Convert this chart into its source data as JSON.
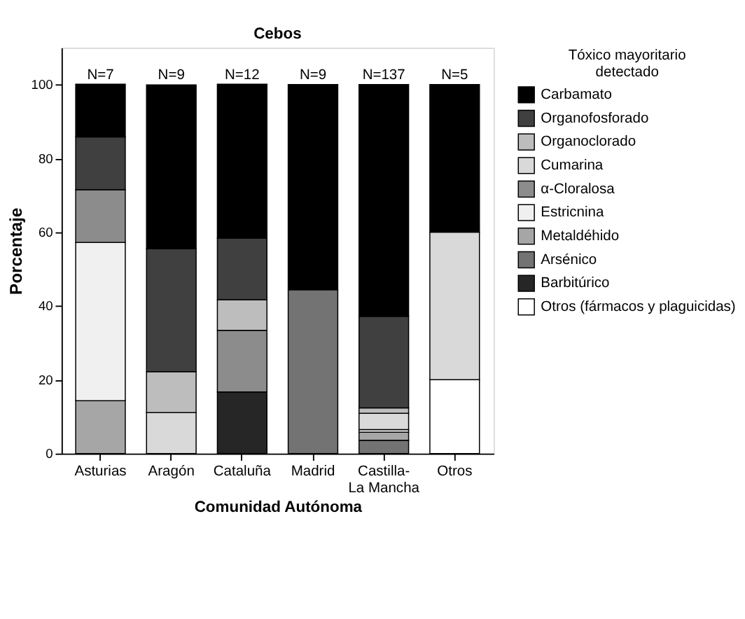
{
  "chart_data": {
    "type": "bar",
    "stacked": true,
    "title": "Cebos",
    "xlabel": "Comunidad Autónoma",
    "ylabel": "Porcentaje",
    "legend_title": "Tóxico mayoritario detectado",
    "categories": [
      "Asturias",
      "Aragón",
      "Cataluña",
      "Madrid",
      "Castilla-La Mancha",
      "Otros"
    ],
    "series": [
      {
        "name": "Otros (fármacos y plaguicidas)",
        "color": "#ffffff",
        "values": [
          null,
          null,
          null,
          null,
          null,
          20
        ]
      },
      {
        "name": "Barbitúrico",
        "color": "#262626",
        "values": [
          null,
          null,
          16.7,
          null,
          null,
          null
        ]
      },
      {
        "name": "Arsénico",
        "color": "#737373",
        "values": [
          null,
          null,
          null,
          44.4,
          3.6,
          null
        ]
      },
      {
        "name": "Metaldéhido",
        "color": "#a6a6a6",
        "values": [
          14.3,
          null,
          null,
          null,
          2.2,
          null
        ]
      },
      {
        "name": "Estricnina",
        "color": "#f0f0f0",
        "values": [
          42.9,
          null,
          null,
          null,
          0.7,
          null
        ]
      },
      {
        "name": "α-Cloralosa",
        "color": "#8c8c8c",
        "values": [
          14.3,
          null,
          16.7,
          null,
          null,
          null
        ]
      },
      {
        "name": "Cumarina",
        "color": "#d9d9d9",
        "values": [
          null,
          11.1,
          null,
          null,
          4.4,
          40
        ]
      },
      {
        "name": "Organoclorado",
        "color": "#bdbdbd",
        "values": [
          null,
          11.1,
          8.3,
          null,
          1.5,
          null
        ]
      },
      {
        "name": "Organofosforado",
        "color": "#404040",
        "values": [
          14.3,
          33.3,
          16.7,
          null,
          24.8,
          null
        ]
      },
      {
        "name": "Carbamato",
        "color": "#000000",
        "values": [
          14.3,
          44.4,
          41.7,
          55.6,
          62.8,
          40
        ]
      }
    ],
    "annotations": [
      {
        "text": "N=7",
        "x": "Asturias",
        "y": 100
      },
      {
        "text": "N=9",
        "x": "Aragón",
        "y": 100
      },
      {
        "text": "N=12",
        "x": "Cataluña",
        "y": 100
      },
      {
        "text": "N=9",
        "x": "Madrid",
        "y": 100
      },
      {
        "text": "N=137",
        "x": "Castilla-La Mancha",
        "y": 100
      },
      {
        "text": "N=5",
        "x": "Otros",
        "y": 100
      }
    ],
    "ylim": [
      0,
      110
    ],
    "yticks": [
      0,
      20,
      40,
      60,
      80,
      100
    ],
    "grid": false,
    "legend": "right"
  }
}
